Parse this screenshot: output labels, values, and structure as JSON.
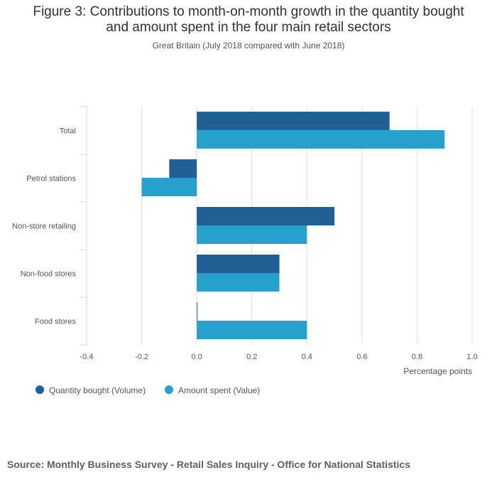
{
  "chart_data": {
    "type": "bar",
    "orientation": "horizontal",
    "title": "Figure 3: Contributions to month-on-month growth in the quantity bought and amount spent in the four main retail sectors",
    "title_lines": [
      "Figure 3: Contributions to month-on-month growth in the quantity bought",
      "and amount spent in the four main retail sectors"
    ],
    "subtitle": "Great Britain (July 2018 compared with June 2018)",
    "categories": [
      "Total",
      "Petrol stations",
      "Non-store retailing",
      "Non-food stores",
      "Food stores"
    ],
    "series": [
      {
        "name": "Quantity bought (Volume)",
        "color": "#206095",
        "values": [
          0.7,
          -0.1,
          0.5,
          0.3,
          0.0
        ]
      },
      {
        "name": "Amount spent (Value)",
        "color": "#27a0cc",
        "values": [
          0.9,
          -0.2,
          0.4,
          0.3,
          0.4
        ]
      }
    ],
    "xlabel": "Percentage points",
    "ylabel": "",
    "xlim": [
      -0.4,
      1.0
    ],
    "xticks": [
      "-0.4",
      "-0.2",
      "0.0",
      "0.2",
      "0.4",
      "0.6",
      "0.8",
      "1.0"
    ],
    "grid": true,
    "legend_position": "bottom-left"
  },
  "source": "Source: Monthly Business Survey - Retail Sales Inquiry - Office for National Statistics",
  "colors": {
    "gridline": "#e0e0e0",
    "axis": "#cfd8e3"
  }
}
